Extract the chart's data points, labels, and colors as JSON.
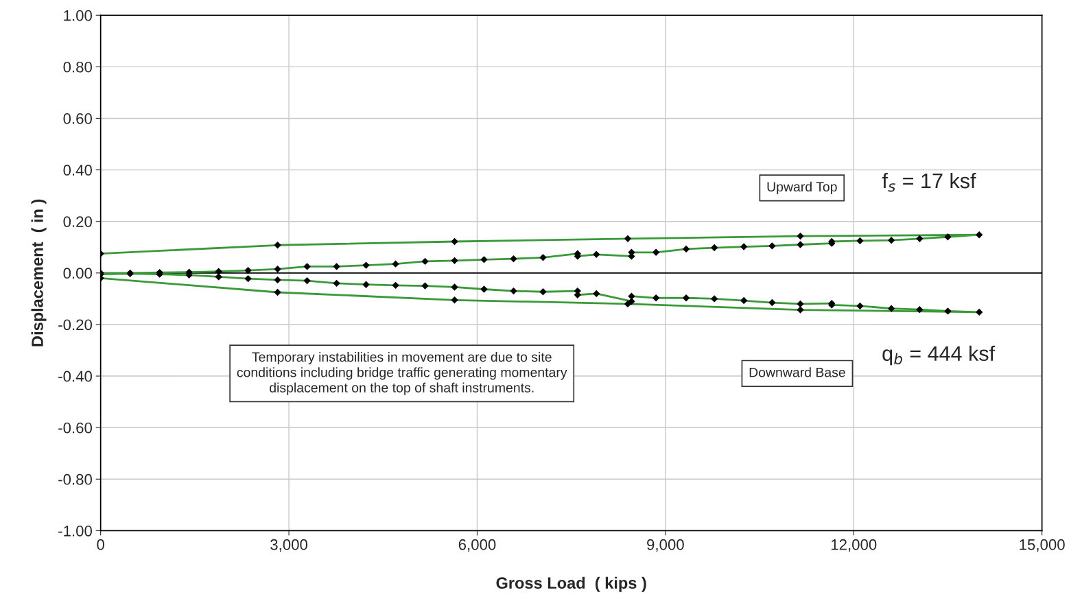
{
  "chart_data": {
    "type": "line",
    "xlabel": "Gross Load  ( kips )",
    "ylabel": "Displacement  ( in )",
    "xlim": [
      0,
      15000
    ],
    "xticks": [
      {
        "value": 0,
        "label": "0"
      },
      {
        "value": 3000,
        "label": "3,000"
      },
      {
        "value": 6000,
        "label": "6,000"
      },
      {
        "value": 9000,
        "label": "9,000"
      },
      {
        "value": 12000,
        "label": "12,000"
      },
      {
        "value": 15000,
        "label": "15,000"
      }
    ],
    "ylim": [
      -1.0,
      1.0
    ],
    "yticks": [
      {
        "value": -1.0,
        "label": "-1.00"
      },
      {
        "value": -0.8,
        "label": "-0.80"
      },
      {
        "value": -0.6,
        "label": "-0.60"
      },
      {
        "value": -0.4,
        "label": "-0.40"
      },
      {
        "value": -0.2,
        "label": "-0.20"
      },
      {
        "value": 0,
        "label": "0.00"
      },
      {
        "value": 0.2,
        "label": "0.20"
      },
      {
        "value": 0.4,
        "label": "0.40"
      },
      {
        "value": 0.6,
        "label": "0.60"
      },
      {
        "value": 0.8,
        "label": "0.80"
      },
      {
        "value": 1.0,
        "label": "1.00"
      }
    ],
    "grid": true,
    "legend": false,
    "marker": "diamond",
    "line_style": "solid",
    "ref_lines": [
      {
        "axis": "y",
        "value": 0,
        "color": "#000000"
      }
    ],
    "series": [
      {
        "color": "#3a9a3a",
        "x": [
          0,
          470,
          940,
          1410,
          1880,
          2350,
          2820,
          3290,
          3760,
          4230,
          4700,
          5170,
          5640,
          6110,
          6580,
          7050,
          7600,
          7600,
          7900,
          8460,
          8460,
          8850,
          9330,
          9780,
          10250,
          10700,
          11150,
          11650,
          11650,
          12100,
          12600,
          13050,
          13500,
          14000,
          11150,
          8400,
          5640,
          2820,
          0
        ],
        "values": [
          0.0,
          0.0,
          0.002,
          0.003,
          0.006,
          0.01,
          0.015,
          0.025,
          0.025,
          0.03,
          0.035,
          0.045,
          0.048,
          0.052,
          0.055,
          0.06,
          0.075,
          0.065,
          0.072,
          0.065,
          0.08,
          0.08,
          0.093,
          0.098,
          0.102,
          0.105,
          0.11,
          0.115,
          0.122,
          0.125,
          0.127,
          0.133,
          0.14,
          0.148,
          0.143,
          0.133,
          0.122,
          0.108,
          0.075
        ]
      },
      {
        "color": "#3a9a3a",
        "x": [
          0,
          470,
          940,
          1410,
          1880,
          2350,
          2820,
          3290,
          3760,
          4230,
          4700,
          5170,
          5640,
          6110,
          6580,
          7050,
          7600,
          7600,
          7900,
          8460,
          8460,
          8850,
          9330,
          9780,
          10250,
          10700,
          11150,
          11650,
          11650,
          12100,
          12600,
          13050,
          13500,
          14000,
          11150,
          8400,
          5640,
          2820,
          0
        ],
        "values": [
          -0.005,
          -0.003,
          -0.005,
          -0.008,
          -0.015,
          -0.022,
          -0.027,
          -0.03,
          -0.04,
          -0.045,
          -0.048,
          -0.05,
          -0.055,
          -0.063,
          -0.07,
          -0.073,
          -0.07,
          -0.085,
          -0.08,
          -0.11,
          -0.09,
          -0.097,
          -0.097,
          -0.1,
          -0.107,
          -0.115,
          -0.12,
          -0.118,
          -0.124,
          -0.128,
          -0.138,
          -0.142,
          -0.148,
          -0.152,
          -0.143,
          -0.12,
          -0.105,
          -0.075,
          -0.02
        ]
      }
    ],
    "annotations": [
      "Upward Top",
      "f$_{s}$ = 17 ksf",
      "q$_{b}$ = 444 ksf",
      "Downward Base",
      "Temporary instabilities in movement are due to site\nconditions including bridge traffic generating momentary\ndisplacement on the top of shaft instruments."
    ]
  }
}
